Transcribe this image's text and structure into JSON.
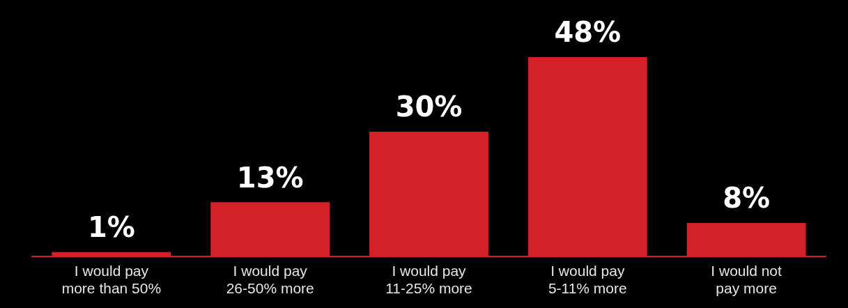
{
  "chart_data": {
    "type": "bar",
    "categories": [
      "I would pay more than 50%",
      "I would pay 26-50% more",
      "I would pay 11-25% more",
      "I would pay 5-11% more",
      "I would not pay more"
    ],
    "values": [
      1,
      13,
      30,
      48,
      8
    ],
    "value_labels": [
      "1%",
      "13%",
      "30%",
      "48%",
      "8%"
    ],
    "color": "#d42027",
    "tick_labels": "x",
    "grid": false,
    "legend": false
  }
}
